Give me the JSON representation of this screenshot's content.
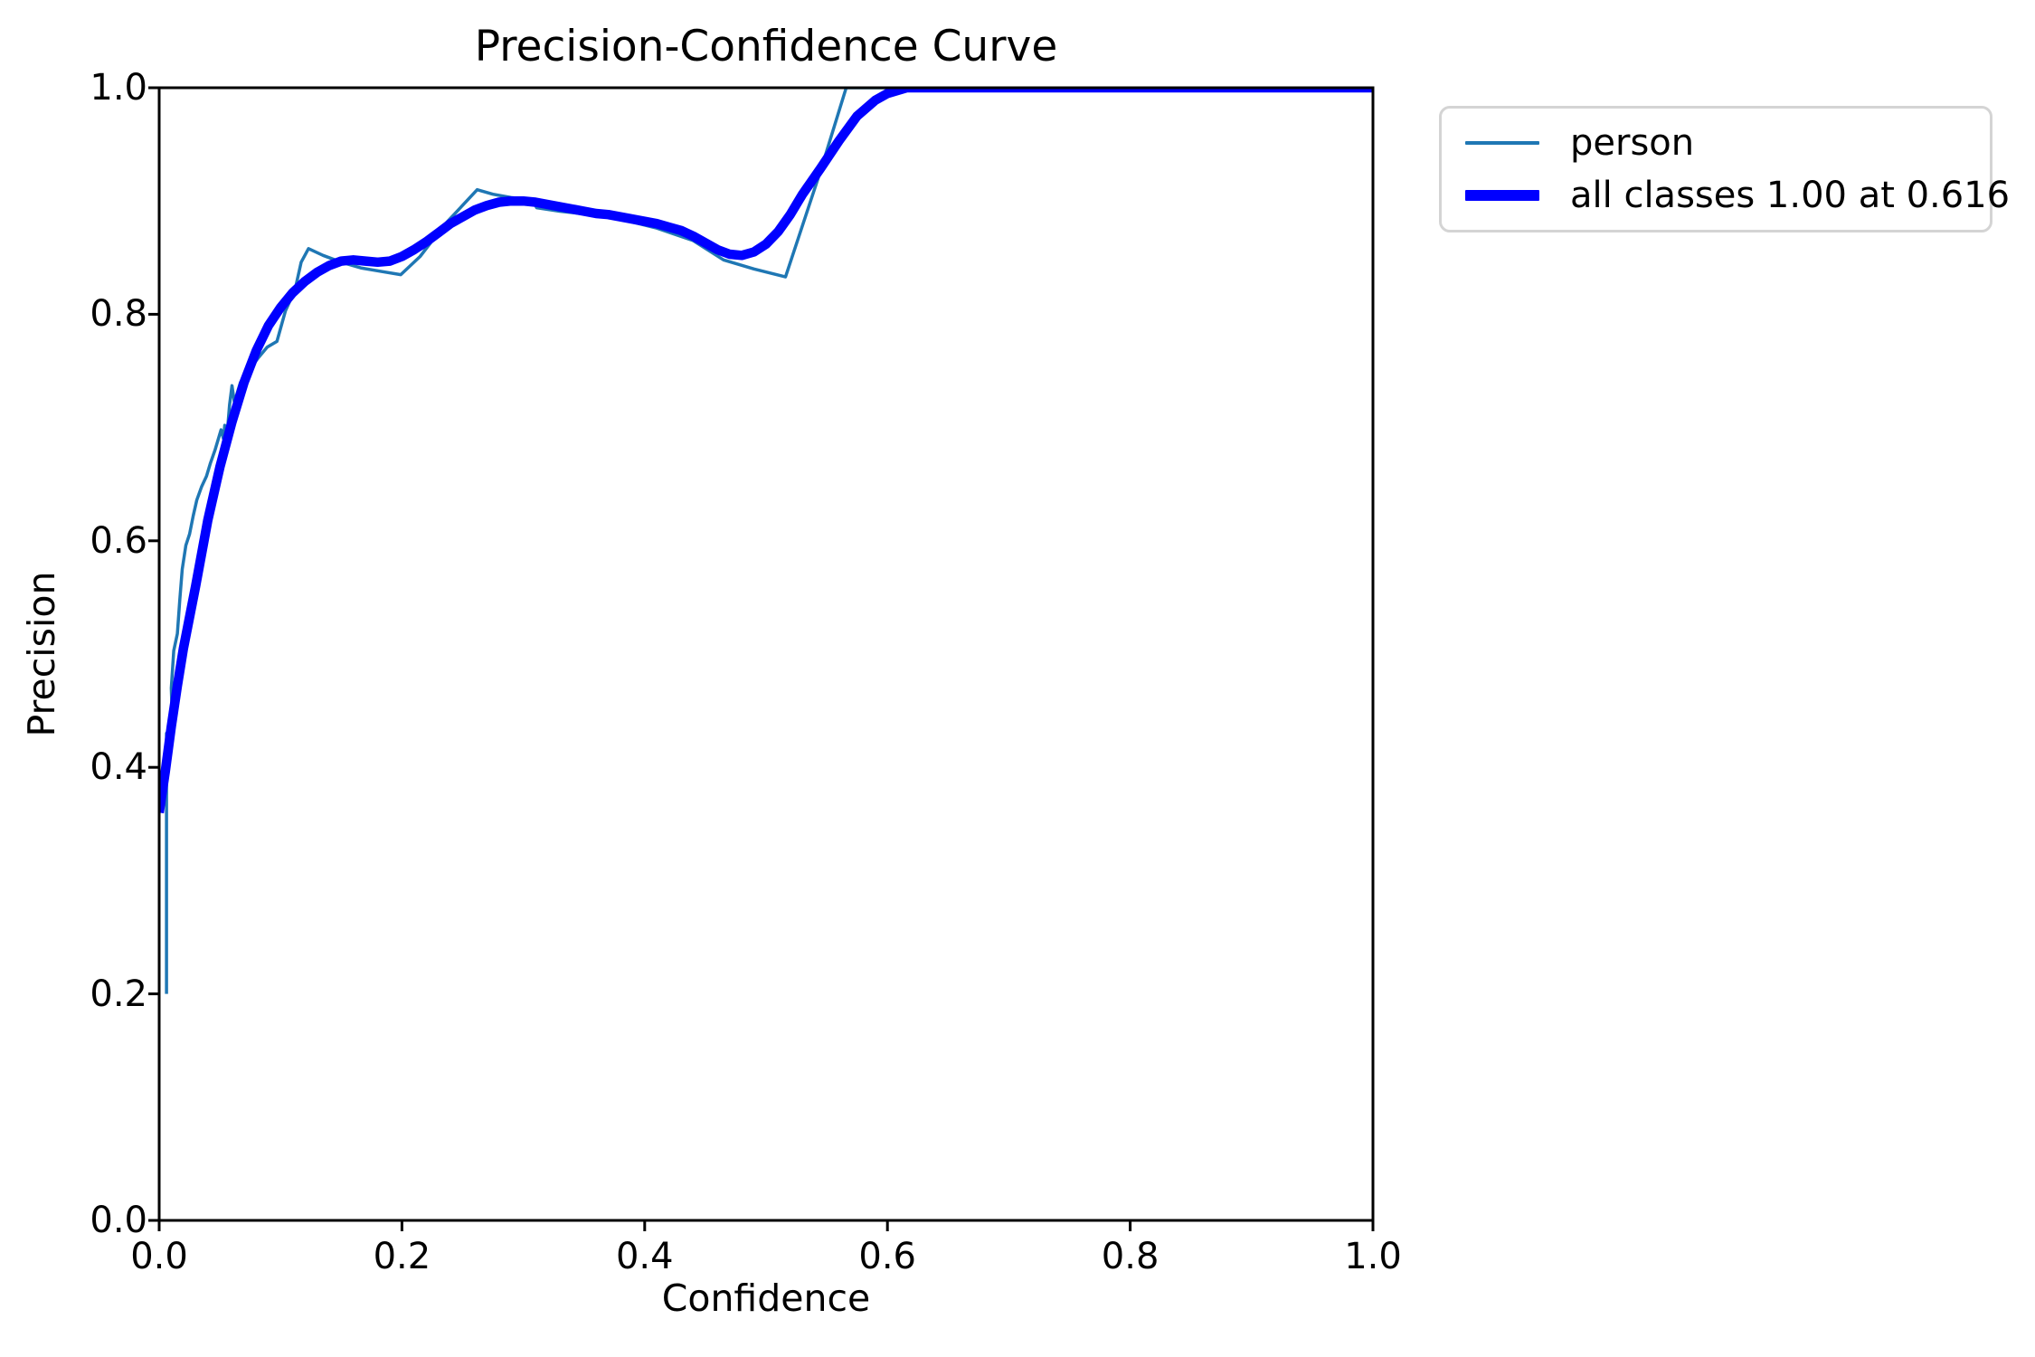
{
  "figure": {
    "background_color": "#ffffff",
    "spine_color": "#000000",
    "text_color": "#000000"
  },
  "chart_data": {
    "type": "line",
    "title": "Precision-Confidence Curve",
    "xlabel": "Confidence",
    "ylabel": "Precision",
    "xlim": [
      0.0,
      1.0
    ],
    "ylim": [
      0.0,
      1.0
    ],
    "grid": false,
    "legend_position": "outside-upper-right",
    "x_tick_labels": [
      "0.0",
      "0.2",
      "0.4",
      "0.6",
      "0.8",
      "1.0"
    ],
    "y_tick_labels": [
      "0.0",
      "0.2",
      "0.4",
      "0.6",
      "0.8",
      "1.0"
    ],
    "x_ticks": [
      0.0,
      0.2,
      0.4,
      0.6,
      0.8,
      1.0
    ],
    "y_ticks": [
      0.0,
      0.2,
      0.4,
      0.6,
      0.8,
      1.0
    ],
    "series": [
      {
        "name": "person",
        "color": "#1f77b4",
        "linewidth": 3.5,
        "points": [
          [
            0.006,
            0.2
          ],
          [
            0.006,
            0.43
          ],
          [
            0.011,
            0.436
          ],
          [
            0.01,
            0.47
          ],
          [
            0.012,
            0.503
          ],
          [
            0.015,
            0.518
          ],
          [
            0.017,
            0.548
          ],
          [
            0.019,
            0.575
          ],
          [
            0.022,
            0.596
          ],
          [
            0.025,
            0.606
          ],
          [
            0.028,
            0.622
          ],
          [
            0.031,
            0.636
          ],
          [
            0.035,
            0.648
          ],
          [
            0.039,
            0.657
          ],
          [
            0.042,
            0.668
          ],
          [
            0.046,
            0.68
          ],
          [
            0.051,
            0.698
          ],
          [
            0.053,
            0.69
          ],
          [
            0.054,
            0.702
          ],
          [
            0.056,
            0.695
          ],
          [
            0.058,
            0.72
          ],
          [
            0.06,
            0.737
          ],
          [
            0.062,
            0.722
          ],
          [
            0.065,
            0.733
          ],
          [
            0.067,
            0.74
          ],
          [
            0.069,
            0.729
          ],
          [
            0.072,
            0.745
          ],
          [
            0.075,
            0.752
          ],
          [
            0.082,
            0.762
          ],
          [
            0.089,
            0.771
          ],
          [
            0.097,
            0.776
          ],
          [
            0.104,
            0.803
          ],
          [
            0.112,
            0.822
          ],
          [
            0.117,
            0.846
          ],
          [
            0.123,
            0.858
          ],
          [
            0.135,
            0.852
          ],
          [
            0.15,
            0.846
          ],
          [
            0.166,
            0.841
          ],
          [
            0.182,
            0.838
          ],
          [
            0.199,
            0.835
          ],
          [
            0.215,
            0.851
          ],
          [
            0.235,
            0.879
          ],
          [
            0.262,
            0.91
          ],
          [
            0.275,
            0.906
          ],
          [
            0.29,
            0.903
          ],
          [
            0.3,
            0.902
          ],
          [
            0.307,
            0.902
          ],
          [
            0.311,
            0.894
          ],
          [
            0.33,
            0.891
          ],
          [
            0.355,
            0.888
          ],
          [
            0.38,
            0.884
          ],
          [
            0.41,
            0.876
          ],
          [
            0.44,
            0.865
          ],
          [
            0.465,
            0.848
          ],
          [
            0.49,
            0.84
          ],
          [
            0.516,
            0.833
          ],
          [
            0.545,
            0.927
          ],
          [
            0.566,
            1.0
          ],
          [
            0.7,
            1.0
          ],
          [
            0.85,
            1.0
          ],
          [
            1.0,
            1.0
          ]
        ]
      },
      {
        "name": "all classes 1.00 at 0.616",
        "color": "#0000ff",
        "linewidth": 10.5,
        "points": [
          [
            0.0,
            0.36
          ],
          [
            0.005,
            0.396
          ],
          [
            0.01,
            0.436
          ],
          [
            0.015,
            0.472
          ],
          [
            0.02,
            0.505
          ],
          [
            0.03,
            0.56
          ],
          [
            0.04,
            0.618
          ],
          [
            0.05,
            0.665
          ],
          [
            0.06,
            0.705
          ],
          [
            0.07,
            0.74
          ],
          [
            0.08,
            0.768
          ],
          [
            0.09,
            0.79
          ],
          [
            0.1,
            0.806
          ],
          [
            0.11,
            0.819
          ],
          [
            0.12,
            0.829
          ],
          [
            0.13,
            0.837
          ],
          [
            0.14,
            0.843
          ],
          [
            0.15,
            0.847
          ],
          [
            0.16,
            0.848
          ],
          [
            0.17,
            0.847
          ],
          [
            0.18,
            0.846
          ],
          [
            0.19,
            0.847
          ],
          [
            0.2,
            0.851
          ],
          [
            0.21,
            0.857
          ],
          [
            0.22,
            0.864
          ],
          [
            0.23,
            0.872
          ],
          [
            0.24,
            0.88
          ],
          [
            0.25,
            0.886
          ],
          [
            0.26,
            0.892
          ],
          [
            0.27,
            0.896
          ],
          [
            0.28,
            0.899
          ],
          [
            0.29,
            0.9
          ],
          [
            0.3,
            0.9
          ],
          [
            0.31,
            0.899
          ],
          [
            0.32,
            0.897
          ],
          [
            0.33,
            0.895
          ],
          [
            0.34,
            0.893
          ],
          [
            0.35,
            0.891
          ],
          [
            0.36,
            0.889
          ],
          [
            0.37,
            0.888
          ],
          [
            0.38,
            0.886
          ],
          [
            0.39,
            0.884
          ],
          [
            0.4,
            0.882
          ],
          [
            0.41,
            0.88
          ],
          [
            0.42,
            0.877
          ],
          [
            0.43,
            0.874
          ],
          [
            0.44,
            0.869
          ],
          [
            0.45,
            0.863
          ],
          [
            0.46,
            0.857
          ],
          [
            0.47,
            0.853
          ],
          [
            0.48,
            0.852
          ],
          [
            0.49,
            0.855
          ],
          [
            0.5,
            0.862
          ],
          [
            0.51,
            0.873
          ],
          [
            0.52,
            0.888
          ],
          [
            0.53,
            0.906
          ],
          [
            0.545,
            0.929
          ],
          [
            0.56,
            0.953
          ],
          [
            0.575,
            0.975
          ],
          [
            0.59,
            0.989
          ],
          [
            0.6,
            0.995
          ],
          [
            0.616,
            1.0
          ],
          [
            0.65,
            1.0
          ],
          [
            0.7,
            1.0
          ],
          [
            0.75,
            1.0
          ],
          [
            0.8,
            1.0
          ],
          [
            0.85,
            1.0
          ],
          [
            0.9,
            1.0
          ],
          [
            0.95,
            1.0
          ],
          [
            1.0,
            1.0
          ]
        ]
      }
    ],
    "legend": [
      {
        "label": "person",
        "color": "#1f77b4",
        "swatch_thickness": 4
      },
      {
        "label": "all classes 1.00 at 0.616",
        "color": "#0000ff",
        "swatch_thickness": 12
      }
    ]
  }
}
